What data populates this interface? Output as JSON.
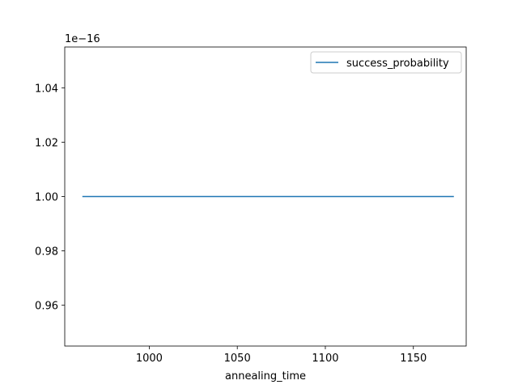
{
  "chart_data": {
    "type": "line",
    "title": "",
    "xlabel": "annealing_time",
    "ylabel": "",
    "y_offset_label": "1e−16",
    "xlim": [
      952,
      1180
    ],
    "ylim": [
      0.945,
      1.055
    ],
    "x_ticks": [
      1000,
      1050,
      1100,
      1150
    ],
    "x_tick_labels": [
      "1000",
      "1050",
      "1100",
      "1150"
    ],
    "y_ticks": [
      0.96,
      0.98,
      1.0,
      1.02,
      1.04
    ],
    "y_tick_labels": [
      "0.96",
      "0.98",
      "1.00",
      "1.02",
      "1.04"
    ],
    "grid": false,
    "legend_position": "top-right",
    "series": [
      {
        "name": "success_probability",
        "color": "#1f77b4",
        "x": [
          962,
          1173
        ],
        "y": [
          1.0,
          1.0
        ]
      }
    ]
  }
}
